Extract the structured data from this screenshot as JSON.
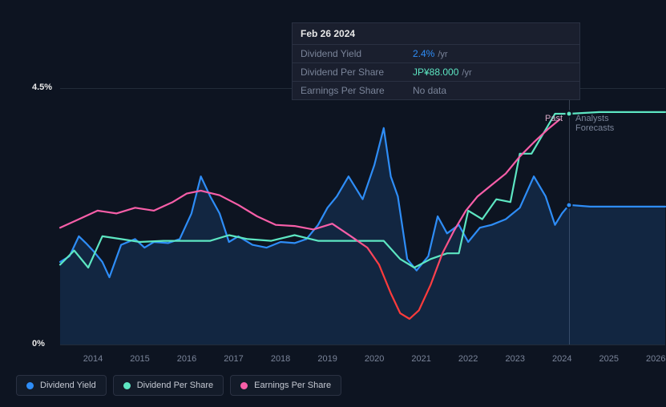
{
  "chart": {
    "type": "line",
    "background_color": "#0d1421",
    "grid_color": "rgba(100,110,130,0.25)",
    "y_axis": {
      "ticks": [
        {
          "value": 0,
          "label": "0%",
          "frac": 0.0
        },
        {
          "value": 4.5,
          "label": "4.5%",
          "frac": 1.0
        }
      ],
      "ylim": [
        0,
        4.5
      ],
      "label_color": "#e8e8e8",
      "label_fontsize": 11
    },
    "x_axis": {
      "ticks": [
        "2014",
        "2015",
        "2016",
        "2017",
        "2018",
        "2019",
        "2020",
        "2021",
        "2022",
        "2023",
        "2024",
        "2025",
        "2026"
      ],
      "start_year": 2013.3,
      "end_year": 2026.2,
      "label_color": "#7a8499",
      "label_fontsize": 11
    },
    "vlines": [
      {
        "x_year": 2024.15,
        "label_left": "Past",
        "label_right": "Analysts Forecasts"
      }
    ],
    "markers": [
      {
        "series": "dividend_per_share",
        "x_year": 2024.15,
        "y_value": 4.05,
        "color": "#5de6c2"
      },
      {
        "series": "dividend_yield",
        "x_year": 2024.15,
        "y_value": 2.45,
        "color": "#2e8df7"
      }
    ],
    "series": [
      {
        "id": "dividend_yield",
        "label": "Dividend Yield",
        "color": "#2e8df7",
        "stroke_width": 2.2,
        "fill_opacity": 0.15,
        "points": [
          [
            2013.3,
            1.45
          ],
          [
            2013.5,
            1.55
          ],
          [
            2013.7,
            1.9
          ],
          [
            2013.85,
            1.78
          ],
          [
            2014.0,
            1.65
          ],
          [
            2014.2,
            1.45
          ],
          [
            2014.35,
            1.18
          ],
          [
            2014.6,
            1.75
          ],
          [
            2014.9,
            1.85
          ],
          [
            2015.1,
            1.7
          ],
          [
            2015.3,
            1.8
          ],
          [
            2015.6,
            1.78
          ],
          [
            2015.85,
            1.85
          ],
          [
            2016.1,
            2.3
          ],
          [
            2016.3,
            2.95
          ],
          [
            2016.5,
            2.6
          ],
          [
            2016.7,
            2.3
          ],
          [
            2016.9,
            1.8
          ],
          [
            2017.1,
            1.9
          ],
          [
            2017.4,
            1.75
          ],
          [
            2017.7,
            1.7
          ],
          [
            2018.0,
            1.8
          ],
          [
            2018.3,
            1.78
          ],
          [
            2018.55,
            1.85
          ],
          [
            2018.8,
            2.1
          ],
          [
            2019.0,
            2.4
          ],
          [
            2019.2,
            2.6
          ],
          [
            2019.45,
            2.95
          ],
          [
            2019.75,
            2.55
          ],
          [
            2020.0,
            3.15
          ],
          [
            2020.2,
            3.8
          ],
          [
            2020.35,
            2.95
          ],
          [
            2020.5,
            2.6
          ],
          [
            2020.7,
            1.5
          ],
          [
            2020.9,
            1.3
          ],
          [
            2021.15,
            1.55
          ],
          [
            2021.35,
            2.25
          ],
          [
            2021.55,
            1.95
          ],
          [
            2021.8,
            2.1
          ],
          [
            2022.0,
            1.8
          ],
          [
            2022.25,
            2.05
          ],
          [
            2022.5,
            2.1
          ],
          [
            2022.8,
            2.2
          ],
          [
            2023.1,
            2.4
          ],
          [
            2023.4,
            2.95
          ],
          [
            2023.65,
            2.6
          ],
          [
            2023.85,
            2.1
          ],
          [
            2024.0,
            2.3
          ],
          [
            2024.15,
            2.45
          ],
          [
            2024.6,
            2.42
          ],
          [
            2025.3,
            2.42
          ],
          [
            2026.2,
            2.42
          ]
        ]
      },
      {
        "id": "dividend_per_share",
        "label": "Dividend Per Share",
        "color": "#5de6c2",
        "stroke_width": 2.2,
        "fill_opacity": 0,
        "points": [
          [
            2013.3,
            1.4
          ],
          [
            2013.6,
            1.65
          ],
          [
            2013.9,
            1.35
          ],
          [
            2014.2,
            1.9
          ],
          [
            2014.6,
            1.85
          ],
          [
            2015.0,
            1.8
          ],
          [
            2015.5,
            1.82
          ],
          [
            2016.0,
            1.82
          ],
          [
            2016.5,
            1.82
          ],
          [
            2016.9,
            1.92
          ],
          [
            2017.3,
            1.85
          ],
          [
            2017.8,
            1.82
          ],
          [
            2018.3,
            1.92
          ],
          [
            2018.8,
            1.82
          ],
          [
            2019.3,
            1.82
          ],
          [
            2019.8,
            1.82
          ],
          [
            2020.2,
            1.82
          ],
          [
            2020.55,
            1.5
          ],
          [
            2020.85,
            1.35
          ],
          [
            2021.2,
            1.5
          ],
          [
            2021.55,
            1.6
          ],
          [
            2021.8,
            1.6
          ],
          [
            2022.0,
            2.35
          ],
          [
            2022.3,
            2.2
          ],
          [
            2022.6,
            2.55
          ],
          [
            2022.9,
            2.5
          ],
          [
            2023.1,
            3.35
          ],
          [
            2023.35,
            3.35
          ],
          [
            2023.6,
            3.7
          ],
          [
            2023.85,
            4.05
          ],
          [
            2024.15,
            4.05
          ],
          [
            2024.8,
            4.08
          ],
          [
            2025.5,
            4.08
          ],
          [
            2026.2,
            4.08
          ]
        ]
      },
      {
        "id": "earnings_per_share",
        "label": "Earnings Per Share",
        "color": "#f75ea8",
        "stroke_width": 2.2,
        "fill_opacity": 0,
        "points": [
          [
            2013.3,
            2.05
          ],
          [
            2013.7,
            2.2
          ],
          [
            2014.1,
            2.35
          ],
          [
            2014.5,
            2.3
          ],
          [
            2014.9,
            2.4
          ],
          [
            2015.3,
            2.35
          ],
          [
            2015.7,
            2.5
          ],
          [
            2016.0,
            2.65
          ],
          [
            2016.3,
            2.7
          ],
          [
            2016.7,
            2.62
          ],
          [
            2017.1,
            2.45
          ],
          [
            2017.5,
            2.25
          ],
          [
            2017.9,
            2.1
          ],
          [
            2018.3,
            2.08
          ],
          [
            2018.7,
            2.02
          ],
          [
            2019.1,
            2.12
          ],
          [
            2019.5,
            1.9
          ],
          [
            2019.85,
            1.7
          ],
          [
            2020.1,
            1.4
          ],
          [
            2020.35,
            0.9
          ],
          [
            2020.55,
            0.55
          ],
          [
            2020.75,
            0.45
          ],
          [
            2020.95,
            0.6
          ],
          [
            2021.2,
            1.05
          ],
          [
            2021.45,
            1.6
          ],
          [
            2021.7,
            2.0
          ],
          [
            2021.95,
            2.35
          ],
          [
            2022.2,
            2.6
          ],
          [
            2022.5,
            2.8
          ],
          [
            2022.8,
            3.0
          ],
          [
            2023.1,
            3.3
          ],
          [
            2023.4,
            3.55
          ],
          [
            2023.7,
            3.78
          ],
          [
            2023.95,
            3.95
          ]
        ],
        "gradient_red_start": 2019.85,
        "gradient_red_end": 2021.45
      }
    ],
    "legend_text_color": "#c5c9d3",
    "legend_border_color": "#2a3142"
  },
  "tooltip": {
    "date": "Feb 26 2024",
    "rows": [
      {
        "label": "Dividend Yield",
        "value": "2.4%",
        "unit": "/yr",
        "color": "#2e8df7"
      },
      {
        "label": "Dividend Per Share",
        "value": "JP¥88.000",
        "unit": "/yr",
        "color": "#5de6c2"
      },
      {
        "label": "Earnings Per Share",
        "value": "No data",
        "unit": "",
        "color": "#7a8499"
      }
    ]
  }
}
